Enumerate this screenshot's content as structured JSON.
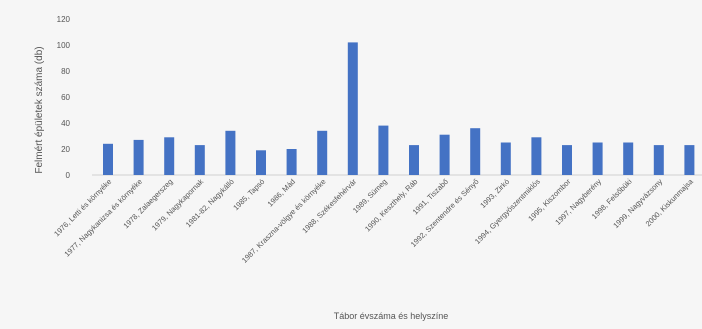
{
  "chart_data": {
    "type": "bar",
    "title": "",
    "xlabel": "Tábor évszáma és helyszíne",
    "ylabel": "Felmért épületek száma (db)",
    "ylim": [
      0,
      120
    ],
    "yticks": [
      0,
      20,
      40,
      60,
      80,
      100,
      120
    ],
    "grid": false,
    "bar_color": "#4472c4",
    "categories": [
      "1976, Letti és környéke",
      "1977, Nagykanizsa és környéke",
      "1978, Zalaegerszeg",
      "1979, Nagykapornak",
      "1981-82, Nagykálló",
      "1985, Tapsó",
      "1986, Mád",
      "1987, Kraszna-völgye és környéke",
      "1988, Székesfehérvár",
      "1989, Sümeg",
      "1990, Keszthely, Ráb",
      "1991, Tiszabő",
      "1992, Szentendre és Sényő",
      "1993, Zirkó",
      "1994, Gyergyószentmiklós",
      "1995, Kiszombor",
      "1997, Nagyberény",
      "1998, Felsőbüki",
      "1999, Nagyvázsony",
      "2000, Kiskunmajsa"
    ],
    "values": [
      24,
      27,
      29,
      23,
      34,
      19,
      20,
      34,
      102,
      38,
      23,
      31,
      36,
      25,
      29,
      23,
      25,
      25,
      23,
      23
    ]
  }
}
